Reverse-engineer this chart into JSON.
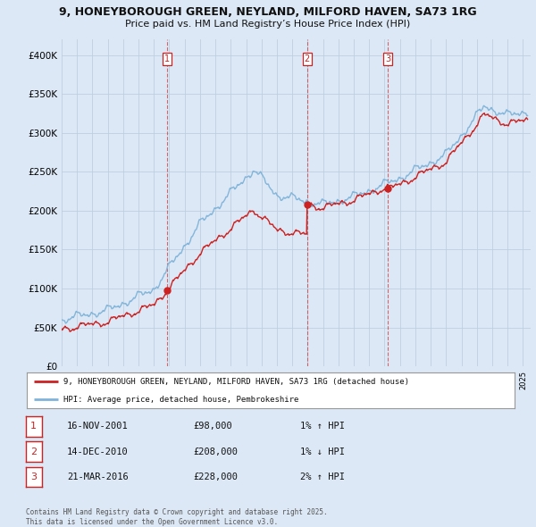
{
  "title_line1": "9, HONEYBOROUGH GREEN, NEYLAND, MILFORD HAVEN, SA73 1RG",
  "title_line2": "Price paid vs. HM Land Registry’s House Price Index (HPI)",
  "background_color": "#dce8f5",
  "plot_background": "#dce8f5",
  "ylim": [
    0,
    420000
  ],
  "yticks": [
    0,
    50000,
    100000,
    150000,
    200000,
    250000,
    300000,
    350000,
    400000
  ],
  "ytick_labels": [
    "£0",
    "£50K",
    "£100K",
    "£150K",
    "£200K",
    "£250K",
    "£300K",
    "£350K",
    "£400K"
  ],
  "sale_dates_num": [
    2001.88,
    2010.96,
    2016.22
  ],
  "sale_prices": [
    98000,
    208000,
    228000
  ],
  "sale_labels": [
    "1",
    "2",
    "3"
  ],
  "legend_line1": "9, HONEYBOROUGH GREEN, NEYLAND, MILFORD HAVEN, SA73 1RG (detached house)",
  "legend_line2": "HPI: Average price, detached house, Pembrokeshire",
  "table_data": [
    [
      "1",
      "16-NOV-2001",
      "£98,000",
      "1% ↑ HPI"
    ],
    [
      "2",
      "14-DEC-2010",
      "£208,000",
      "1% ↓ HPI"
    ],
    [
      "3",
      "21-MAR-2016",
      "£228,000",
      "2% ↑ HPI"
    ]
  ],
  "footer": "Contains HM Land Registry data © Crown copyright and database right 2025.\nThis data is licensed under the Open Government Licence v3.0.",
  "hpi_color": "#7fb3d9",
  "price_color": "#cc2222",
  "vline_color": "#cc2222",
  "grid_color": "#c0cfe0"
}
